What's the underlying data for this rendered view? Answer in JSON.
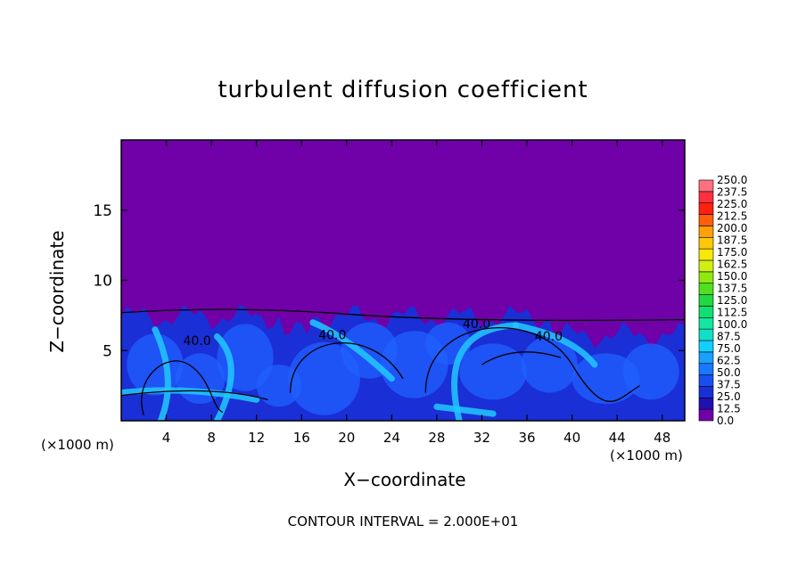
{
  "chart_data": {
    "type": "heatmap",
    "title": "turbulent diffusion coefficient",
    "xlabel": "X−coordinate",
    "ylabel": "Z−coordinate",
    "x_unit_label": "(×1000 m)",
    "z_unit_label": "(×1000 m)",
    "x_range": [
      0,
      50
    ],
    "z_range": [
      0,
      20
    ],
    "x_ticks": [
      4,
      8,
      12,
      16,
      20,
      24,
      28,
      32,
      36,
      40,
      44,
      48
    ],
    "z_ticks": [
      5,
      10,
      15
    ],
    "contour_interval_text": "CONTOUR INTERVAL = 2.000E+01",
    "contour_labels": [
      "40.0",
      "40.0",
      "40.0",
      "40.0"
    ],
    "boundary_layer_top_z": 8,
    "colorbar": {
      "levels": [
        0.0,
        12.5,
        25.0,
        37.5,
        50.0,
        62.5,
        75.0,
        87.5,
        100.0,
        112.5,
        125.0,
        137.5,
        150.0,
        162.5,
        175.0,
        187.5,
        200.0,
        212.5,
        225.0,
        237.5,
        250.0
      ],
      "labels": [
        "0.0",
        "12.5",
        "25.0",
        "37.5",
        "50.0",
        "62.5",
        "75.0",
        "87.5",
        "100.0",
        "112.5",
        "125.0",
        "137.5",
        "150.0",
        "162.5",
        "175.0",
        "187.5",
        "200.0",
        "212.5",
        "225.0",
        "237.5",
        "250.0"
      ],
      "colors": [
        "#7000a8",
        "#2010b0",
        "#1830d8",
        "#1850f0",
        "#1878ff",
        "#18a0ff",
        "#10d0ff",
        "#10e0c8",
        "#10e8a0",
        "#10e070",
        "#20d840",
        "#50e020",
        "#90e810",
        "#d0f010",
        "#f8e808",
        "#ffc808",
        "#ffa008",
        "#ff6008",
        "#ff2010",
        "#ff3040",
        "#ff7080"
      ]
    },
    "colors": {
      "background_field": "#7000a8",
      "deep_blue": "#1a2fd6",
      "mid_blue": "#2060ff",
      "cyan": "#22c8ff",
      "contour": "#000000"
    }
  }
}
